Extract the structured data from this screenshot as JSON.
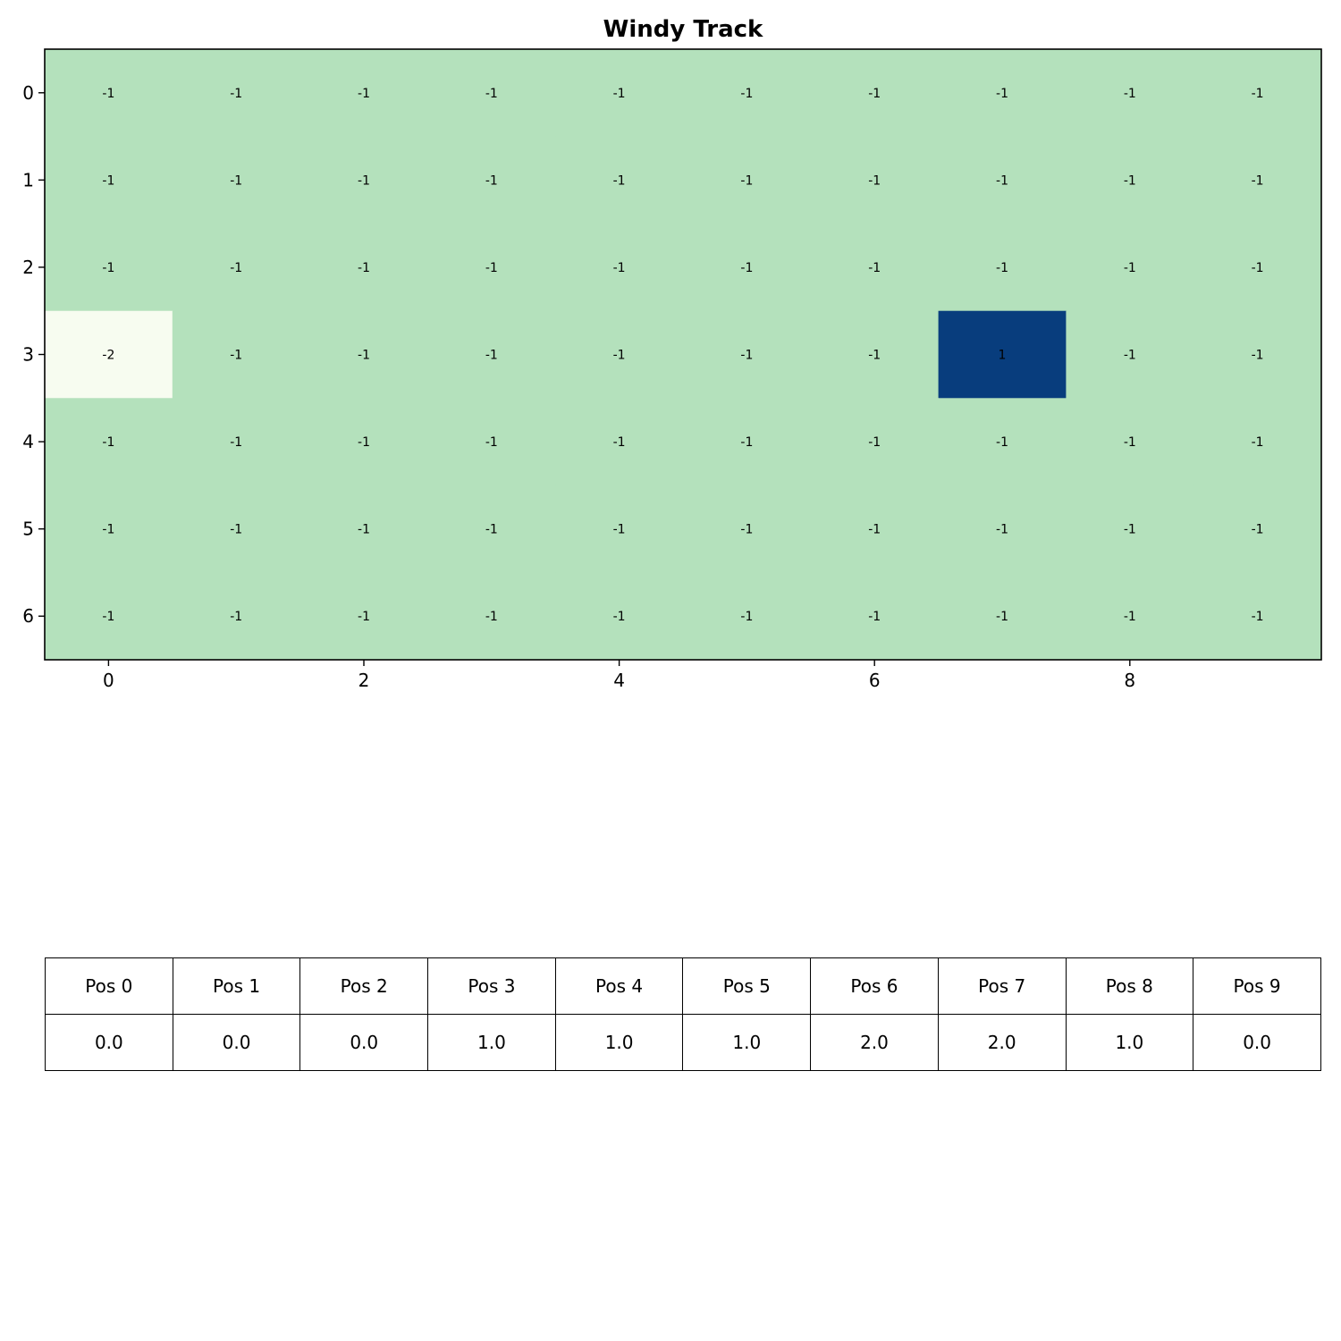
{
  "chart_data": {
    "type": "heatmap",
    "title": "Windy Track",
    "xlabel": "",
    "ylabel": "",
    "n_rows": 7,
    "n_cols": 10,
    "row_tick_labels": [
      "0",
      "1",
      "2",
      "3",
      "4",
      "5",
      "6"
    ],
    "col_tick_labels": [
      "0",
      "2",
      "4",
      "6",
      "8"
    ],
    "col_tick_values": [
      0,
      2,
      4,
      6,
      8
    ],
    "values": [
      [
        -1,
        -1,
        -1,
        -1,
        -1,
        -1,
        -1,
        -1,
        -1,
        -1
      ],
      [
        -1,
        -1,
        -1,
        -1,
        -1,
        -1,
        -1,
        -1,
        -1,
        -1
      ],
      [
        -1,
        -1,
        -1,
        -1,
        -1,
        -1,
        -1,
        -1,
        -1,
        -1
      ],
      [
        -2,
        -1,
        -1,
        -1,
        -1,
        -1,
        -1,
        1,
        -1,
        -1
      ],
      [
        -1,
        -1,
        -1,
        -1,
        -1,
        -1,
        -1,
        -1,
        -1,
        -1
      ],
      [
        -1,
        -1,
        -1,
        -1,
        -1,
        -1,
        -1,
        -1,
        -1,
        -1
      ],
      [
        -1,
        -1,
        -1,
        -1,
        -1,
        -1,
        -1,
        -1,
        -1,
        -1
      ]
    ],
    "value_labels": [
      [
        "-1",
        "-1",
        "-1",
        "-1",
        "-1",
        "-1",
        "-1",
        "-1",
        "-1",
        "-1"
      ],
      [
        "-1",
        "-1",
        "-1",
        "-1",
        "-1",
        "-1",
        "-1",
        "-1",
        "-1",
        "-1"
      ],
      [
        "-1",
        "-1",
        "-1",
        "-1",
        "-1",
        "-1",
        "-1",
        "-1",
        "-1",
        "-1"
      ],
      [
        "-2",
        "-1",
        "-1",
        "-1",
        "-1",
        "-1",
        "-1",
        "1",
        "-1",
        "-1"
      ],
      [
        "-1",
        "-1",
        "-1",
        "-1",
        "-1",
        "-1",
        "-1",
        "-1",
        "-1",
        "-1"
      ],
      [
        "-1",
        "-1",
        "-1",
        "-1",
        "-1",
        "-1",
        "-1",
        "-1",
        "-1",
        "-1"
      ],
      [
        "-1",
        "-1",
        "-1",
        "-1",
        "-1",
        "-1",
        "-1",
        "-1",
        "-1",
        "-1"
      ]
    ],
    "colormap": {
      "-2": "#f7fcf0",
      "-1": "#b4e1bc",
      "1": "#083d7d"
    },
    "grid": false
  },
  "table": {
    "headers": [
      "Pos 0",
      "Pos 1",
      "Pos 2",
      "Pos 3",
      "Pos 4",
      "Pos 5",
      "Pos 6",
      "Pos 7",
      "Pos 8",
      "Pos 9"
    ],
    "values": [
      "0.0",
      "0.0",
      "0.0",
      "1.0",
      "1.0",
      "1.0",
      "2.0",
      "2.0",
      "1.0",
      "0.0"
    ]
  }
}
